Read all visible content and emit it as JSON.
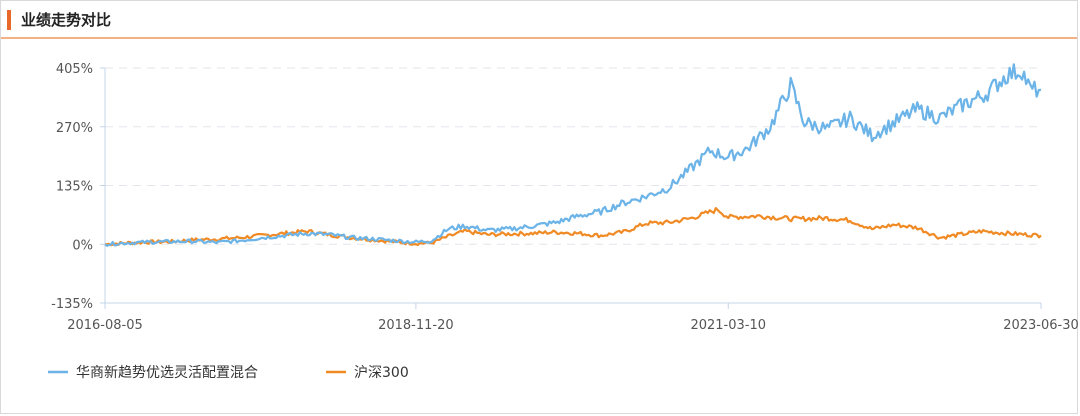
{
  "panel": {
    "title": "业绩走势对比"
  },
  "chart_data": {
    "type": "line",
    "xlabel": "",
    "ylabel": "",
    "x_tick_labels": [
      "2016-08-05",
      "2018-11-20",
      "2021-03-10",
      "2023-06-30"
    ],
    "y_tick_labels": [
      "405%",
      "270%",
      "135%",
      "0%",
      "-135%"
    ],
    "y_ticks": [
      405,
      270,
      135,
      0,
      -135
    ],
    "ylim": [
      -135,
      405
    ],
    "xlim": [
      "2016-08-05",
      "2023-06-30"
    ],
    "grid": "horizontal dashed",
    "legend_position": "bottom-left",
    "series": [
      {
        "name": "华商新趋势优选灵活配置混合",
        "color": "#6cb4e8",
        "points": [
          [
            "2016-08-05",
            0
          ],
          [
            "2016-10-01",
            3
          ],
          [
            "2016-12-01",
            5
          ],
          [
            "2017-02-01",
            6
          ],
          [
            "2017-04-01",
            7
          ],
          [
            "2017-06-01",
            4
          ],
          [
            "2017-08-01",
            8
          ],
          [
            "2017-10-01",
            15
          ],
          [
            "2017-12-01",
            20
          ],
          [
            "2018-02-01",
            25
          ],
          [
            "2018-04-01",
            22
          ],
          [
            "2018-06-01",
            15
          ],
          [
            "2018-08-01",
            12
          ],
          [
            "2018-10-01",
            8
          ],
          [
            "2018-11-20",
            5
          ],
          [
            "2019-01-01",
            8
          ],
          [
            "2019-02-15",
            35
          ],
          [
            "2019-04-01",
            42
          ],
          [
            "2019-06-01",
            32
          ],
          [
            "2019-08-01",
            35
          ],
          [
            "2019-10-01",
            42
          ],
          [
            "2019-12-01",
            50
          ],
          [
            "2020-02-01",
            65
          ],
          [
            "2020-04-01",
            75
          ],
          [
            "2020-06-01",
            95
          ],
          [
            "2020-08-01",
            110
          ],
          [
            "2020-10-01",
            130
          ],
          [
            "2020-12-01",
            175
          ],
          [
            "2021-01-20",
            215
          ],
          [
            "2021-03-10",
            200
          ],
          [
            "2021-05-01",
            220
          ],
          [
            "2021-07-01",
            270
          ],
          [
            "2021-08-25",
            365
          ],
          [
            "2021-10-01",
            280
          ],
          [
            "2021-12-01",
            265
          ],
          [
            "2022-02-01",
            290
          ],
          [
            "2022-04-01",
            250
          ],
          [
            "2022-06-01",
            280
          ],
          [
            "2022-08-01",
            310
          ],
          [
            "2022-10-01",
            290
          ],
          [
            "2022-12-01",
            320
          ],
          [
            "2023-02-01",
            345
          ],
          [
            "2023-04-01",
            390
          ],
          [
            "2023-05-10",
            400
          ],
          [
            "2023-06-01",
            355
          ],
          [
            "2023-06-30",
            355
          ]
        ]
      },
      {
        "name": "沪深300",
        "color": "#f08a24",
        "points": [
          [
            "2016-08-05",
            0
          ],
          [
            "2016-10-01",
            3
          ],
          [
            "2016-12-01",
            5
          ],
          [
            "2017-02-01",
            6
          ],
          [
            "2017-04-01",
            10
          ],
          [
            "2017-06-01",
            12
          ],
          [
            "2017-08-01",
            15
          ],
          [
            "2017-10-01",
            20
          ],
          [
            "2017-12-01",
            25
          ],
          [
            "2018-02-01",
            30
          ],
          [
            "2018-04-01",
            22
          ],
          [
            "2018-06-01",
            15
          ],
          [
            "2018-08-01",
            10
          ],
          [
            "2018-10-01",
            5
          ],
          [
            "2018-11-20",
            2
          ],
          [
            "2019-01-01",
            3
          ],
          [
            "2019-02-15",
            18
          ],
          [
            "2019-04-01",
            30
          ],
          [
            "2019-06-01",
            22
          ],
          [
            "2019-08-01",
            24
          ],
          [
            "2019-10-01",
            25
          ],
          [
            "2019-12-01",
            28
          ],
          [
            "2020-02-01",
            25
          ],
          [
            "2020-04-01",
            20
          ],
          [
            "2020-06-01",
            28
          ],
          [
            "2020-08-01",
            48
          ],
          [
            "2020-10-01",
            50
          ],
          [
            "2020-12-01",
            60
          ],
          [
            "2021-02-10",
            80
          ],
          [
            "2021-03-10",
            62
          ],
          [
            "2021-06-01",
            65
          ],
          [
            "2021-09-01",
            58
          ],
          [
            "2021-12-01",
            60
          ],
          [
            "2022-02-01",
            55
          ],
          [
            "2022-04-01",
            35
          ],
          [
            "2022-06-01",
            45
          ],
          [
            "2022-08-01",
            38
          ],
          [
            "2022-10-01",
            15
          ],
          [
            "2023-01-20",
            30
          ],
          [
            "2023-04-01",
            25
          ],
          [
            "2023-06-30",
            20
          ]
        ]
      }
    ]
  }
}
